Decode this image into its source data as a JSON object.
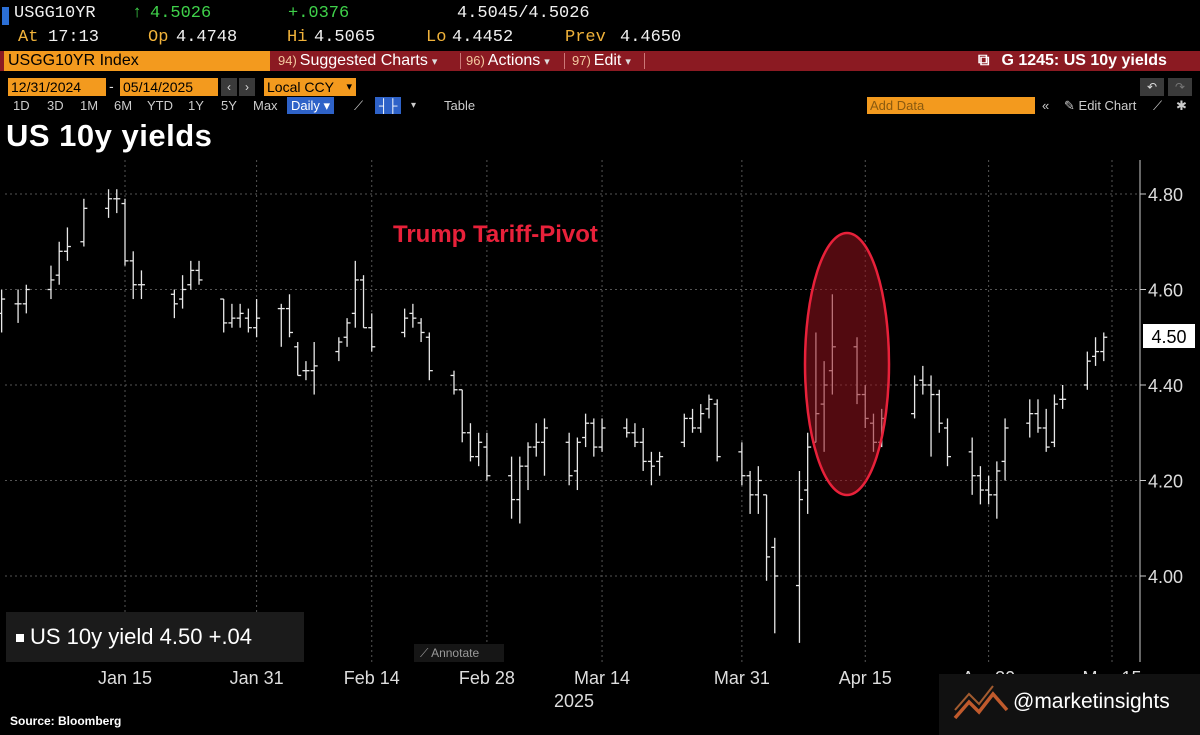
{
  "header": {
    "ticker": "USGG10YR",
    "last": "4.5026",
    "arrow": "↑",
    "change": "+.0376",
    "bid_ask": "4.5045/4.5026",
    "at_label": "At",
    "at_time": "17:13",
    "open_label": "Op",
    "open": "4.4748",
    "high_label": "Hi",
    "high": "4.5065",
    "low_label": "Lo",
    "low": "4.4452",
    "prev_label": "Prev",
    "prev": "4.4650"
  },
  "menubar": {
    "security": "USGG10YR Index",
    "suggested_num": "94)",
    "suggested": "Suggested Charts",
    "actions_num": "96)",
    "actions": "Actions",
    "edit_num": "97)",
    "edit": "Edit",
    "chart_id": "G 1245: US 10y yields"
  },
  "range": {
    "start": "12/31/2024",
    "end": "05/14/2025",
    "currency": "Local CCY"
  },
  "toolbar": {
    "periods": [
      "1D",
      "3D",
      "1M",
      "6M",
      "YTD",
      "1Y",
      "5Y",
      "Max"
    ],
    "frequency": "Daily",
    "table": "Table",
    "add_data": "Add Data",
    "edit_chart": "Edit Chart"
  },
  "title": "US 10y yields",
  "legend": {
    "label": "US 10y yield",
    "value": "4.50",
    "change": "+.04"
  },
  "annotate": "Annotate",
  "source": "Source: Bloomberg",
  "watermark": "@marketinsights",
  "colors": {
    "accent_orange": "#f39a1e",
    "menu_red": "#8b1a22",
    "annotation_red": "#e8213a",
    "up_green": "#3fd14a"
  },
  "chart_data": {
    "type": "ohlc",
    "title": "US 10y yields",
    "annotation": "Trump Tariff-Pivot",
    "yticks": [
      4.0,
      4.2,
      4.4,
      4.6,
      4.8
    ],
    "ylim": [
      3.85,
      4.85
    ],
    "last_value": "4.50",
    "xticks": [
      "Jan 15",
      "Jan 31",
      "Feb 14",
      "Feb 28",
      "Mar 14",
      "Mar 31",
      "Apr 15",
      "Apr 30",
      "May 15"
    ],
    "year_label": "2025",
    "grid": true,
    "bars": [
      {
        "date": "2024-12-31",
        "o": 4.55,
        "h": 4.6,
        "l": 4.51,
        "c": 4.58
      },
      {
        "date": "2025-01-02",
        "o": 4.57,
        "h": 4.6,
        "l": 4.53,
        "c": 4.57
      },
      {
        "date": "2025-01-03",
        "o": 4.57,
        "h": 4.61,
        "l": 4.55,
        "c": 4.6
      },
      {
        "date": "2025-01-06",
        "o": 4.6,
        "h": 4.65,
        "l": 4.58,
        "c": 4.62
      },
      {
        "date": "2025-01-07",
        "o": 4.63,
        "h": 4.7,
        "l": 4.61,
        "c": 4.68
      },
      {
        "date": "2025-01-08",
        "o": 4.68,
        "h": 4.73,
        "l": 4.66,
        "c": 4.69
      },
      {
        "date": "2025-01-10",
        "o": 4.7,
        "h": 4.79,
        "l": 4.69,
        "c": 4.77
      },
      {
        "date": "2025-01-13",
        "o": 4.77,
        "h": 4.81,
        "l": 4.75,
        "c": 4.79
      },
      {
        "date": "2025-01-14",
        "o": 4.79,
        "h": 4.81,
        "l": 4.76,
        "c": 4.79
      },
      {
        "date": "2025-01-15",
        "o": 4.78,
        "h": 4.79,
        "l": 4.65,
        "c": 4.66
      },
      {
        "date": "2025-01-16",
        "o": 4.66,
        "h": 4.68,
        "l": 4.58,
        "c": 4.61
      },
      {
        "date": "2025-01-17",
        "o": 4.61,
        "h": 4.64,
        "l": 4.58,
        "c": 4.61
      },
      {
        "date": "2025-01-21",
        "o": 4.59,
        "h": 4.6,
        "l": 4.54,
        "c": 4.57
      },
      {
        "date": "2025-01-22",
        "o": 4.58,
        "h": 4.63,
        "l": 4.56,
        "c": 4.6
      },
      {
        "date": "2025-01-23",
        "o": 4.61,
        "h": 4.66,
        "l": 4.6,
        "c": 4.64
      },
      {
        "date": "2025-01-24",
        "o": 4.64,
        "h": 4.66,
        "l": 4.61,
        "c": 4.62
      },
      {
        "date": "2025-01-27",
        "o": 4.58,
        "h": 4.58,
        "l": 4.51,
        "c": 4.53
      },
      {
        "date": "2025-01-28",
        "o": 4.53,
        "h": 4.57,
        "l": 4.52,
        "c": 4.54
      },
      {
        "date": "2025-01-29",
        "o": 4.54,
        "h": 4.57,
        "l": 4.52,
        "c": 4.55
      },
      {
        "date": "2025-01-30",
        "o": 4.54,
        "h": 4.56,
        "l": 4.51,
        "c": 4.52
      },
      {
        "date": "2025-01-31",
        "o": 4.52,
        "h": 4.58,
        "l": 4.5,
        "c": 4.54
      },
      {
        "date": "2025-02-03",
        "o": 4.56,
        "h": 4.57,
        "l": 4.48,
        "c": 4.56
      },
      {
        "date": "2025-02-04",
        "o": 4.56,
        "h": 4.59,
        "l": 4.5,
        "c": 4.51
      },
      {
        "date": "2025-02-05",
        "o": 4.48,
        "h": 4.49,
        "l": 4.42,
        "c": 4.42
      },
      {
        "date": "2025-02-06",
        "o": 4.43,
        "h": 4.45,
        "l": 4.41,
        "c": 4.43
      },
      {
        "date": "2025-02-07",
        "o": 4.43,
        "h": 4.49,
        "l": 4.38,
        "c": 4.44
      },
      {
        "date": "2025-02-10",
        "o": 4.47,
        "h": 4.5,
        "l": 4.45,
        "c": 4.49
      },
      {
        "date": "2025-02-11",
        "o": 4.5,
        "h": 4.54,
        "l": 4.48,
        "c": 4.53
      },
      {
        "date": "2025-02-12",
        "o": 4.55,
        "h": 4.66,
        "l": 4.52,
        "c": 4.62
      },
      {
        "date": "2025-02-13",
        "o": 4.62,
        "h": 4.63,
        "l": 4.52,
        "c": 4.52
      },
      {
        "date": "2025-02-14",
        "o": 4.52,
        "h": 4.55,
        "l": 4.47,
        "c": 4.48
      },
      {
        "date": "2025-02-18",
        "o": 4.51,
        "h": 4.56,
        "l": 4.5,
        "c": 4.54
      },
      {
        "date": "2025-02-19",
        "o": 4.55,
        "h": 4.57,
        "l": 4.52,
        "c": 4.54
      },
      {
        "date": "2025-02-20",
        "o": 4.53,
        "h": 4.54,
        "l": 4.49,
        "c": 4.51
      },
      {
        "date": "2025-02-21",
        "o": 4.5,
        "h": 4.51,
        "l": 4.41,
        "c": 4.43
      },
      {
        "date": "2025-02-24",
        "o": 4.42,
        "h": 4.43,
        "l": 4.38,
        "c": 4.39
      },
      {
        "date": "2025-02-25",
        "o": 4.39,
        "h": 4.39,
        "l": 4.28,
        "c": 4.3
      },
      {
        "date": "2025-02-26",
        "o": 4.3,
        "h": 4.32,
        "l": 4.24,
        "c": 4.25
      },
      {
        "date": "2025-02-27",
        "o": 4.25,
        "h": 4.3,
        "l": 4.23,
        "c": 4.28
      },
      {
        "date": "2025-02-28",
        "o": 4.27,
        "h": 4.3,
        "l": 4.2,
        "c": 4.21
      },
      {
        "date": "2025-03-03",
        "o": 4.21,
        "h": 4.25,
        "l": 4.12,
        "c": 4.16
      },
      {
        "date": "2025-03-04",
        "o": 4.16,
        "h": 4.25,
        "l": 4.11,
        "c": 4.23
      },
      {
        "date": "2025-03-05",
        "o": 4.23,
        "h": 4.28,
        "l": 4.18,
        "c": 4.27
      },
      {
        "date": "2025-03-06",
        "o": 4.27,
        "h": 4.32,
        "l": 4.25,
        "c": 4.28
      },
      {
        "date": "2025-03-07",
        "o": 4.28,
        "h": 4.33,
        "l": 4.21,
        "c": 4.31
      },
      {
        "date": "2025-03-10",
        "o": 4.28,
        "h": 4.3,
        "l": 4.19,
        "c": 4.21
      },
      {
        "date": "2025-03-11",
        "o": 4.22,
        "h": 4.29,
        "l": 4.18,
        "c": 4.28
      },
      {
        "date": "2025-03-12",
        "o": 4.29,
        "h": 4.34,
        "l": 4.27,
        "c": 4.32
      },
      {
        "date": "2025-03-13",
        "o": 4.32,
        "h": 4.33,
        "l": 4.25,
        "c": 4.27
      },
      {
        "date": "2025-03-14",
        "o": 4.27,
        "h": 4.33,
        "l": 4.26,
        "c": 4.31
      },
      {
        "date": "2025-03-17",
        "o": 4.31,
        "h": 4.33,
        "l": 4.29,
        "c": 4.3
      },
      {
        "date": "2025-03-18",
        "o": 4.3,
        "h": 4.32,
        "l": 4.27,
        "c": 4.28
      },
      {
        "date": "2025-03-19",
        "o": 4.28,
        "h": 4.31,
        "l": 4.22,
        "c": 4.24
      },
      {
        "date": "2025-03-20",
        "o": 4.24,
        "h": 4.26,
        "l": 4.19,
        "c": 4.23
      },
      {
        "date": "2025-03-21",
        "o": 4.24,
        "h": 4.26,
        "l": 4.21,
        "c": 4.25
      },
      {
        "date": "2025-03-24",
        "o": 4.28,
        "h": 4.34,
        "l": 4.27,
        "c": 4.33
      },
      {
        "date": "2025-03-25",
        "o": 4.33,
        "h": 4.35,
        "l": 4.3,
        "c": 4.31
      },
      {
        "date": "2025-03-26",
        "o": 4.31,
        "h": 4.36,
        "l": 4.3,
        "c": 4.34
      },
      {
        "date": "2025-03-27",
        "o": 4.35,
        "h": 4.38,
        "l": 4.33,
        "c": 4.37
      },
      {
        "date": "2025-03-28",
        "o": 4.36,
        "h": 4.37,
        "l": 4.24,
        "c": 4.25
      },
      {
        "date": "2025-03-31",
        "o": 4.26,
        "h": 4.28,
        "l": 4.19,
        "c": 4.21
      },
      {
        "date": "2025-04-01",
        "o": 4.21,
        "h": 4.22,
        "l": 4.13,
        "c": 4.17
      },
      {
        "date": "2025-04-02",
        "o": 4.17,
        "h": 4.23,
        "l": 4.13,
        "c": 4.2
      },
      {
        "date": "2025-04-03",
        "o": 4.17,
        "h": 4.17,
        "l": 3.99,
        "c": 4.04
      },
      {
        "date": "2025-04-04",
        "o": 4.06,
        "h": 4.08,
        "l": 3.88,
        "c": 4.0
      },
      {
        "date": "2025-04-07",
        "o": 3.98,
        "h": 4.22,
        "l": 3.86,
        "c": 4.16
      },
      {
        "date": "2025-04-08",
        "o": 4.18,
        "h": 4.3,
        "l": 4.13,
        "c": 4.27
      },
      {
        "date": "2025-04-09",
        "o": 4.28,
        "h": 4.51,
        "l": 4.28,
        "c": 4.34
      },
      {
        "date": "2025-04-10",
        "o": 4.36,
        "h": 4.45,
        "l": 4.26,
        "c": 4.4
      },
      {
        "date": "2025-04-11",
        "o": 4.43,
        "h": 4.59,
        "l": 4.38,
        "c": 4.48
      },
      {
        "date": "2025-04-14",
        "o": 4.48,
        "h": 4.5,
        "l": 4.36,
        "c": 4.38
      },
      {
        "date": "2025-04-15",
        "o": 4.38,
        "h": 4.4,
        "l": 4.31,
        "c": 4.33
      },
      {
        "date": "2025-04-16",
        "o": 4.32,
        "h": 4.34,
        "l": 4.26,
        "c": 4.28
      },
      {
        "date": "2025-04-17",
        "o": 4.28,
        "h": 4.35,
        "l": 4.27,
        "c": 4.33
      },
      {
        "date": "2025-04-21",
        "o": 4.34,
        "h": 4.42,
        "l": 4.33,
        "c": 4.4
      },
      {
        "date": "2025-04-22",
        "o": 4.41,
        "h": 4.44,
        "l": 4.38,
        "c": 4.4
      },
      {
        "date": "2025-04-23",
        "o": 4.4,
        "h": 4.42,
        "l": 4.25,
        "c": 4.38
      },
      {
        "date": "2025-04-24",
        "o": 4.38,
        "h": 4.39,
        "l": 4.3,
        "c": 4.32
      },
      {
        "date": "2025-04-25",
        "o": 4.31,
        "h": 4.33,
        "l": 4.23,
        "c": 4.25
      },
      {
        "date": "2025-04-28",
        "o": 4.26,
        "h": 4.29,
        "l": 4.17,
        "c": 4.21
      },
      {
        "date": "2025-04-29",
        "o": 4.21,
        "h": 4.23,
        "l": 4.15,
        "c": 4.18
      },
      {
        "date": "2025-04-30",
        "o": 4.18,
        "h": 4.21,
        "l": 4.15,
        "c": 4.17
      },
      {
        "date": "2025-05-01",
        "o": 4.17,
        "h": 4.24,
        "l": 4.12,
        "c": 4.22
      },
      {
        "date": "2025-05-02",
        "o": 4.24,
        "h": 4.33,
        "l": 4.2,
        "c": 4.31
      },
      {
        "date": "2025-05-05",
        "o": 4.32,
        "h": 4.37,
        "l": 4.29,
        "c": 4.34
      },
      {
        "date": "2025-05-06",
        "o": 4.34,
        "h": 4.37,
        "l": 4.3,
        "c": 4.31
      },
      {
        "date": "2025-05-07",
        "o": 4.31,
        "h": 4.35,
        "l": 4.26,
        "c": 4.27
      },
      {
        "date": "2025-05-08",
        "o": 4.28,
        "h": 4.38,
        "l": 4.27,
        "c": 4.36
      },
      {
        "date": "2025-05-09",
        "o": 4.37,
        "h": 4.4,
        "l": 4.35,
        "c": 4.37
      },
      {
        "date": "2025-05-12",
        "o": 4.4,
        "h": 4.47,
        "l": 4.39,
        "c": 4.45
      },
      {
        "date": "2025-05-13",
        "o": 4.46,
        "h": 4.5,
        "l": 4.44,
        "c": 4.47
      },
      {
        "date": "2025-05-14",
        "o": 4.47,
        "h": 4.51,
        "l": 4.45,
        "c": 4.5
      }
    ]
  }
}
